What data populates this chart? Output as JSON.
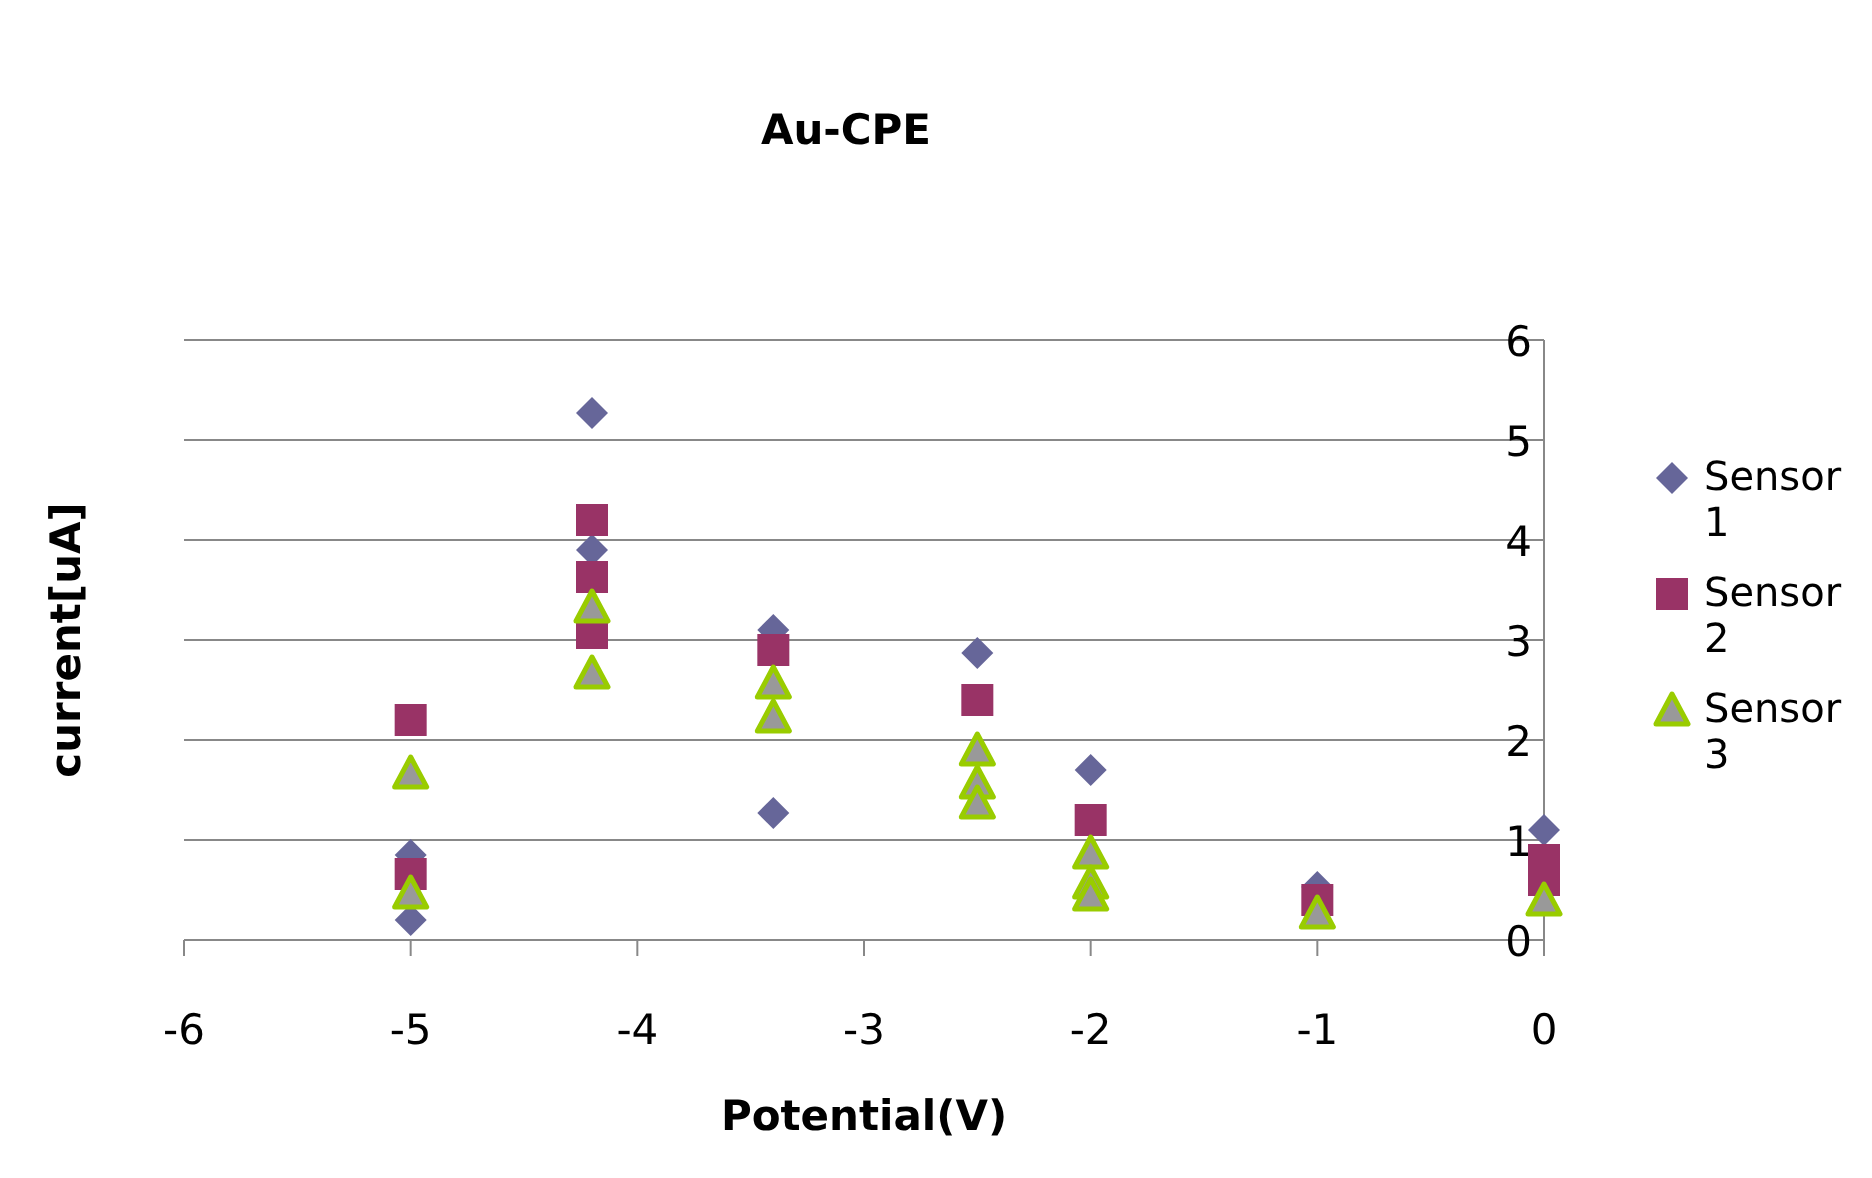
{
  "chart_data": {
    "type": "scatter",
    "title": "Au-CPE",
    "xlabel": "Potential(V)",
    "ylabel": "current[uA]",
    "xlim": [
      -6,
      0
    ],
    "xticks": [
      -6,
      -5,
      -4,
      -3,
      -2,
      -1,
      0
    ],
    "ylim": [
      0,
      6
    ],
    "yticks": [
      0,
      1,
      2,
      3,
      4,
      5,
      6
    ],
    "grid": "y",
    "legend": "right",
    "series": [
      {
        "name": "Sensor 1",
        "color": "#666699",
        "marker": "diamond",
        "x": [
          -5,
          -5,
          -4.2,
          -4.2,
          -3.4,
          -3.4,
          -2.5,
          -2,
          -1,
          0
        ],
        "values": [
          0.2,
          0.85,
          5.27,
          3.9,
          3.1,
          1.27,
          2.87,
          1.7,
          0.53,
          1.1
        ]
      },
      {
        "name": "Sensor 2",
        "color": "#993366",
        "marker": "square",
        "x": [
          -5,
          -5,
          -4.2,
          -4.2,
          -4.2,
          -3.4,
          -2.5,
          -2,
          -1,
          0,
          0
        ],
        "values": [
          2.2,
          0.66,
          4.2,
          3.63,
          3.07,
          2.9,
          2.4,
          1.2,
          0.4,
          0.8,
          0.6
        ]
      },
      {
        "name": "Sensor 3",
        "color": "#99cc00",
        "marker": "triangle",
        "x": [
          -5,
          -5,
          -4.2,
          -4.2,
          -3.4,
          -3.4,
          -2.5,
          -2.5,
          -2.5,
          -2,
          -2,
          -2,
          -1,
          0
        ],
        "values": [
          1.67,
          0.47,
          3.33,
          2.67,
          2.57,
          2.23,
          1.9,
          1.57,
          1.37,
          0.87,
          0.57,
          0.45,
          0.27,
          0.4
        ]
      }
    ]
  }
}
